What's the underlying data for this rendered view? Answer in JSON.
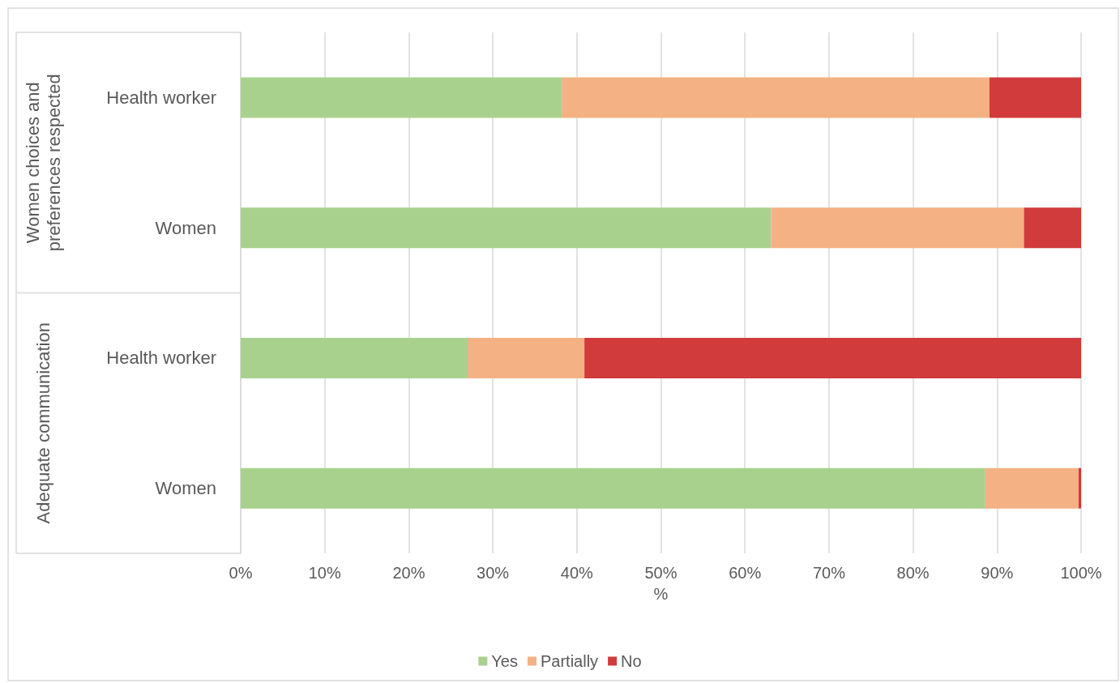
{
  "chart_data": {
    "type": "bar",
    "orientation": "horizontal",
    "stacked": true,
    "categories": [
      "Health worker",
      "Women",
      "Health worker",
      "Women"
    ],
    "series": [
      {
        "name": "Yes",
        "color": "#a9d18e",
        "values": [
          38.2,
          63.1,
          27.0,
          88.6
        ]
      },
      {
        "name": "Partially",
        "color": "#f4b183",
        "values": [
          50.9,
          30.1,
          13.9,
          11.1
        ]
      },
      {
        "name": "No",
        "color": "#d13b3b",
        "values": [
          10.9,
          6.8,
          59.1,
          0.3
        ]
      }
    ],
    "xlabel": "%",
    "xlim": [
      0,
      100
    ],
    "xticks": [
      {
        "value": 0,
        "label": "0%"
      },
      {
        "value": 10,
        "label": "10%"
      },
      {
        "value": 20,
        "label": "20%"
      },
      {
        "value": 30,
        "label": "30%"
      },
      {
        "value": 40,
        "label": "40%"
      },
      {
        "value": 50,
        "label": "50%"
      },
      {
        "value": 60,
        "label": "60%"
      },
      {
        "value": 70,
        "label": "70%"
      },
      {
        "value": 80,
        "label": "80%"
      },
      {
        "value": 90,
        "label": "90%"
      },
      {
        "value": 100,
        "label": "100%"
      }
    ],
    "annotations": [
      "Women choices and preferences respected",
      "Adequate communication"
    ],
    "grid": "x",
    "legend": "bottom"
  }
}
